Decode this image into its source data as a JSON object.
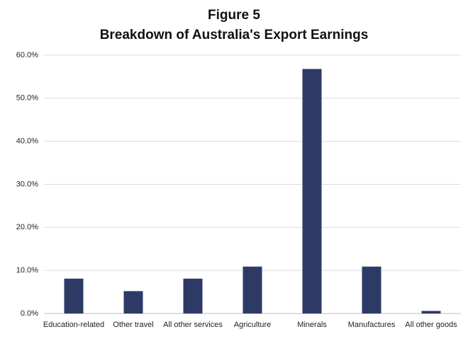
{
  "chart_data": {
    "type": "bar",
    "title": "Figure 5",
    "subtitle": "Breakdown of Australia's Export Earnings",
    "categories": [
      "Education-related",
      "Other travel",
      "All other services",
      "Agriculture",
      "Minerals",
      "Manufactures",
      "All other goods"
    ],
    "values": [
      8.1,
      5.2,
      8.1,
      10.9,
      56.8,
      10.9,
      0.6
    ],
    "color": "#2e3a66",
    "ylim": [
      0,
      60
    ],
    "yticks": [
      {
        "value": 0,
        "label": "0.0%"
      },
      {
        "value": 10,
        "label": "10.0%"
      },
      {
        "value": 20,
        "label": "20.0%"
      },
      {
        "value": 30,
        "label": "30.0%"
      },
      {
        "value": 40,
        "label": "40.0%"
      },
      {
        "value": 50,
        "label": "50.0%"
      },
      {
        "value": 60,
        "label": "60.0%"
      }
    ],
    "grid": true
  }
}
